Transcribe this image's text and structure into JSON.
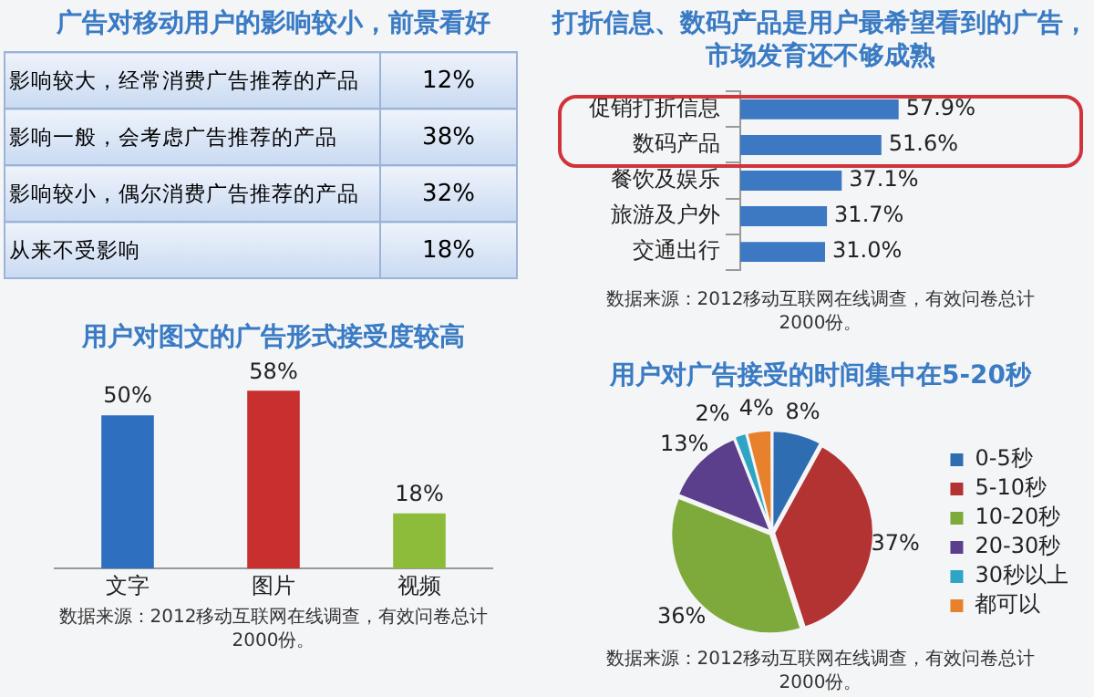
{
  "chart_data": [
    {
      "type": "other",
      "title": "广告对移动用户的影响较小，前景看好",
      "categories": [
        "影响较大，经常消费广告推荐的产品",
        "影响一般，会考虑广告推荐的产品",
        "影响较小，偶尔消费广告推荐的产品",
        "从来不受影响"
      ],
      "value_labels": [
        "12%",
        "38%",
        "32%",
        "18%"
      ]
    },
    {
      "type": "bar",
      "orientation": "horizontal",
      "title": "打折信息、数码产品是用户最希望看到的广告，市场发育还不够成熟",
      "categories": [
        "促销打折信息",
        "数码产品",
        "餐饮及娱乐",
        "旅游及户外",
        "交通出行"
      ],
      "values": [
        57.9,
        51.6,
        37.1,
        31.7,
        31.0
      ],
      "value_labels": [
        "57.9%",
        "51.6%",
        "37.1%",
        "31.7%",
        "31.0%"
      ],
      "color": "#3d78c2",
      "annotations": [
        "数据来源：2012移动互联网在线调查，有效问卷总计2000份。"
      ]
    },
    {
      "type": "bar",
      "title": "用户对图文的广告形式接受度较高",
      "categories": [
        "文字",
        "图片",
        "视频"
      ],
      "values": [
        50,
        58,
        18
      ],
      "value_labels": [
        "50%",
        "58%",
        "18%"
      ],
      "colors": [
        "#2f6fc0",
        "#c8302f",
        "#8dbb3a"
      ],
      "annotations": [
        "数据来源：2012移动互联网在线调查，有效问卷总计2000份。"
      ]
    },
    {
      "type": "pie",
      "title": "用户对广告接受的时间集中在5-20秒",
      "categories": [
        "0-5秒",
        "5-10秒",
        "10-20秒",
        "20-30秒",
        "30秒以上",
        "都可以"
      ],
      "values": [
        8,
        37,
        36,
        13,
        2,
        4
      ],
      "value_labels": [
        "8%",
        "37%",
        "36%",
        "13%",
        "2%",
        "4%"
      ],
      "colors": [
        "#2f6db3",
        "#b33232",
        "#7eaa3b",
        "#5c3f8c",
        "#2ea5c4",
        "#e8812c"
      ],
      "legend": "right",
      "annotations": [
        "数据来源：2012移动互联网在线调查，有效问卷总计2000份。"
      ]
    }
  ]
}
